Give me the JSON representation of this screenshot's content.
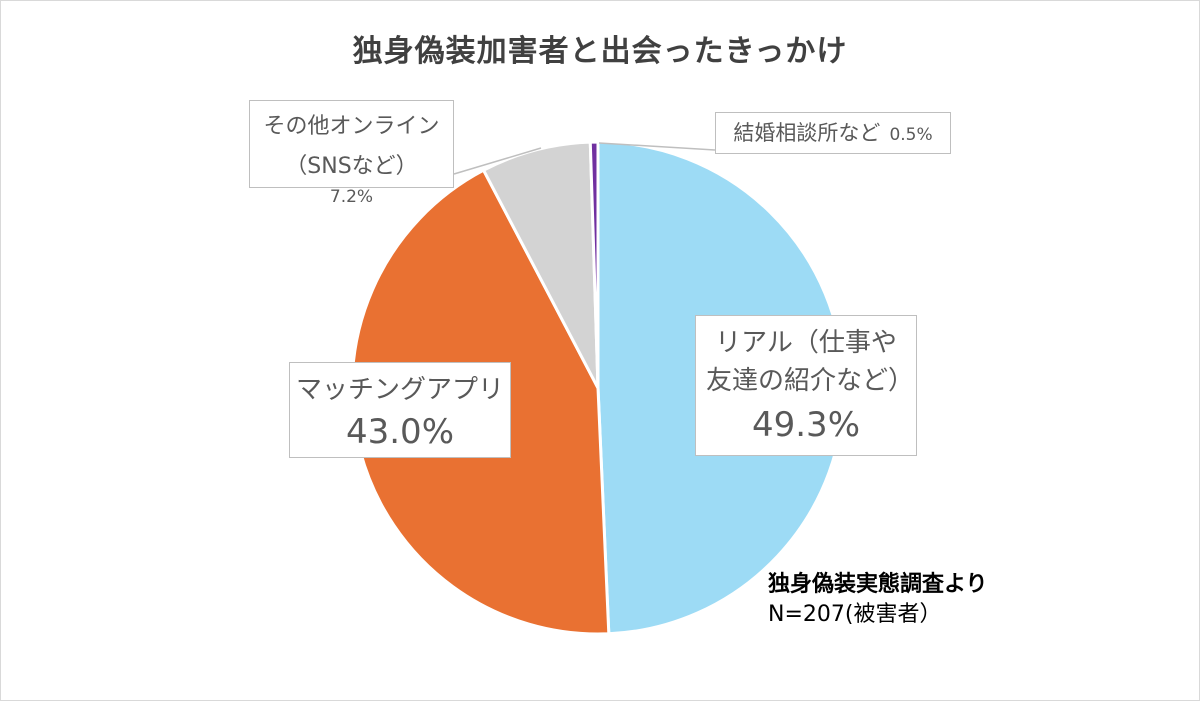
{
  "chart_data": {
    "type": "pie",
    "title": "独身偽装加害者と出会ったきっかけ",
    "slices": [
      {
        "label": "リアル（仕事や友達の紹介など）",
        "value": 49.3,
        "value_label": "49.3%",
        "color": "#9DDBF5"
      },
      {
        "label": "マッチングアプリ",
        "value": 43.0,
        "value_label": "43.0%",
        "color": "#E97132"
      },
      {
        "label": "その他オンライン（SNSなど）",
        "value": 7.2,
        "value_label": "7.2%",
        "color": "#D3D3D3"
      },
      {
        "label": "結婚相談所など",
        "value": 0.5,
        "value_label": "0.5%",
        "color": "#7030A0"
      }
    ],
    "start": "12 o'clock",
    "direction": "clockwise"
  },
  "source": {
    "line1": "独身偽装実態調査より",
    "line2": "N=207(被害者）"
  }
}
